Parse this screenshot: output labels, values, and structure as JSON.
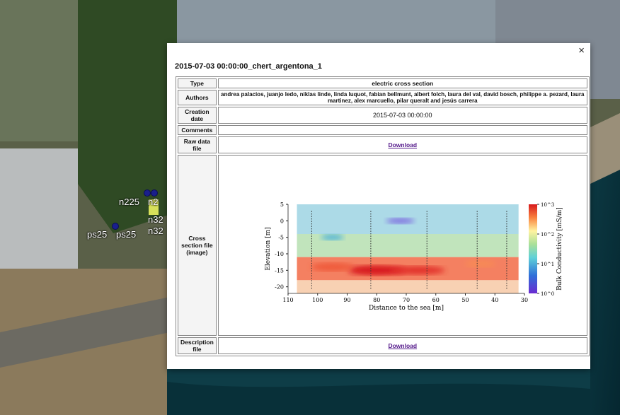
{
  "map": {
    "markers": [
      {
        "label": "n225"
      },
      {
        "label": "n2"
      },
      {
        "label": "n32"
      },
      {
        "label": "n32"
      },
      {
        "label": "ps25"
      },
      {
        "label": "ps25"
      }
    ]
  },
  "popup": {
    "close_label": "×",
    "title": "2015-07-03 00:00:00_chert_argentona_1",
    "rows": {
      "type": {
        "key": "Type",
        "value": "electric cross section"
      },
      "authors": {
        "key": "Authors",
        "value": "andrea palacios, juanjo ledo, niklas linde, linda luquot, fabian bellmunt, albert folch, laura del val, david bosch, philippe a. pezard, laura martinez, alex marcuello, pilar queralt and jesús carrera"
      },
      "creation": {
        "key": "Creation date",
        "value": "2015-07-03 00:00:00"
      },
      "comments": {
        "key": "Comments",
        "value": ""
      },
      "raw": {
        "key": "Raw data file",
        "link": "Download"
      },
      "cross": {
        "key": "Cross section file (image)"
      },
      "description": {
        "key": "Description file",
        "link": "Download"
      }
    }
  },
  "chart_data": {
    "type": "heatmap",
    "xlabel": "Distance to the sea [m]",
    "ylabel": "Elevation [m]",
    "colorbar_label": "Bulk Conductivity [mS/m]",
    "x_ticks": [
      110,
      100,
      90,
      80,
      70,
      60,
      50,
      40,
      30
    ],
    "y_ticks": [
      5,
      0,
      -5,
      -10,
      -15,
      -20
    ],
    "xlim": [
      110,
      30
    ],
    "ylim": [
      -22,
      5
    ],
    "colorbar_ticks": [
      "10^0",
      "10^1",
      "10^2",
      "10^3"
    ],
    "colorbar_range": [
      1,
      1000
    ],
    "borehole_x": [
      102,
      82,
      63,
      46,
      36
    ],
    "layers": [
      {
        "elevation_top": 5,
        "elevation_bottom": -4,
        "conductivity": "10^1.2"
      },
      {
        "elevation_top": -4,
        "elevation_bottom": -11,
        "conductivity": "10^1.8"
      },
      {
        "elevation_top": -11,
        "elevation_bottom": -18,
        "conductivity": "10^2.7"
      },
      {
        "elevation_top": -18,
        "elevation_bottom": -22,
        "conductivity": "10^1.9"
      }
    ]
  },
  "colors": {
    "high": "#d7191c",
    "mid_high": "#fdae61",
    "mid": "#ffffbf",
    "mid_low": "#abdda4",
    "low": "#2b83ba",
    "lowest": "#5e3c99"
  }
}
